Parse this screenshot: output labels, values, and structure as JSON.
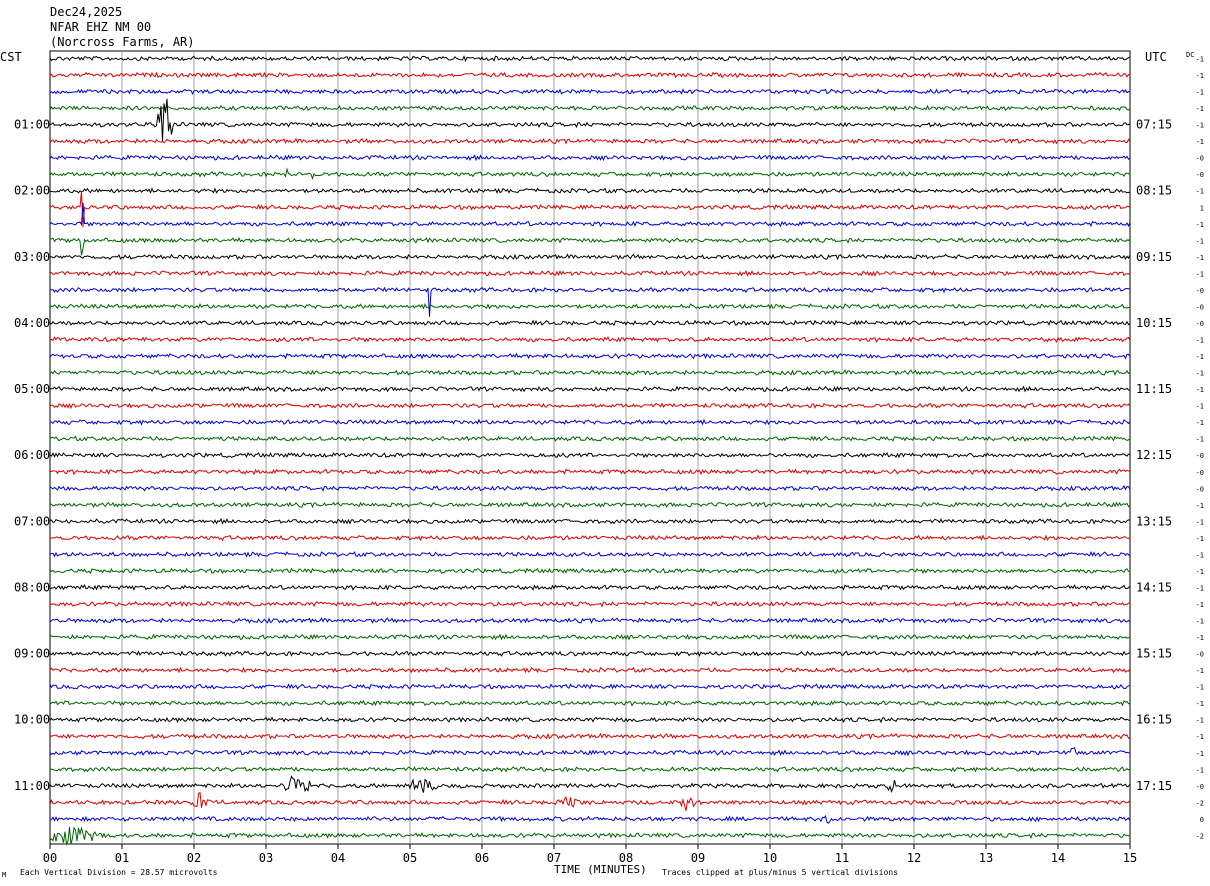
{
  "header": {
    "date": "Dec24,2025",
    "station": "NFAR EHZ NM 00",
    "location": "(Norcross Farms, AR)"
  },
  "left_axis_label": "CST",
  "right_axis_label": "UTC",
  "dc_label": "DC",
  "footer": {
    "note_left_prefix": "M",
    "note_left": "Each Vertical Division =   28.57 microvolts",
    "xlabel": "TIME (MINUTES)",
    "note_right": "Traces clipped at plus/minus 5 vertical divisions"
  },
  "colors": {
    "trace_cycle": [
      "#000000",
      "#dd0000",
      "#0000dd",
      "#006400"
    ],
    "grid": "#888888"
  },
  "chart_data": {
    "type": "line",
    "xlabel": "TIME (MINUTES)",
    "xlim": [
      0,
      15
    ],
    "x_ticks": [
      "00",
      "01",
      "02",
      "03",
      "04",
      "05",
      "06",
      "07",
      "08",
      "09",
      "10",
      "11",
      "12",
      "13",
      "14",
      "15"
    ],
    "rows": 48,
    "left_time_labels": [
      "01:00",
      "02:00",
      "03:00",
      "04:00",
      "05:00",
      "06:00",
      "07:00",
      "08:00",
      "09:00",
      "10:00",
      "11:00"
    ],
    "right_time_labels": [
      "07:15",
      "08:15",
      "09:15",
      "10:15",
      "11:15",
      "12:15",
      "13:15",
      "14:15",
      "15:15",
      "16:15",
      "17:15"
    ],
    "dc_offsets": [
      "-1",
      "-1",
      "-1",
      "-1",
      "-1",
      "-1",
      "-0",
      "-0",
      "-1",
      "1",
      "-1",
      "-1",
      "-1",
      "-1",
      "-0",
      "-0",
      "-0",
      "-1",
      "-1",
      "-1",
      "-1",
      "-1",
      "-1",
      "-1",
      "-0",
      "-0",
      "-0",
      "-1",
      "-1",
      "-1",
      "-1",
      "-1",
      "-1",
      "-1",
      "-1",
      "-1",
      "-0",
      "-1",
      "-1",
      "-1",
      "-1",
      "-1",
      "-1",
      "-1",
      "-0",
      "-2",
      "0",
      "-2"
    ],
    "events": [
      {
        "row": 4,
        "minute": 1.6,
        "amp": 3.5,
        "dur": 0.15
      },
      {
        "row": 7,
        "minute": 3.28,
        "amp": 3.0,
        "dur": 0.02
      },
      {
        "row": 7,
        "minute": 3.65,
        "amp": 2.0,
        "dur": 0.02
      },
      {
        "row": 9,
        "minute": 0.45,
        "amp": 5,
        "dur": 0.02
      },
      {
        "row": 10,
        "minute": 0.45,
        "amp": 5,
        "dur": 0.02
      },
      {
        "row": 11,
        "minute": 0.45,
        "amp": 5,
        "dur": 0.02
      },
      {
        "row": 14,
        "minute": 5.27,
        "amp": 4.5,
        "dur": 0.02
      },
      {
        "row": 44,
        "minute": 3.45,
        "amp": 1.5,
        "dur": 0.25
      },
      {
        "row": 44,
        "minute": 5.15,
        "amp": 1.2,
        "dur": 0.3
      },
      {
        "row": 44,
        "minute": 11.7,
        "amp": 1.0,
        "dur": 0.1
      },
      {
        "row": 45,
        "minute": 2.1,
        "amp": 1.0,
        "dur": 0.2
      },
      {
        "row": 45,
        "minute": 7.2,
        "amp": 0.8,
        "dur": 0.2
      },
      {
        "row": 45,
        "minute": 8.85,
        "amp": 1.0,
        "dur": 0.15
      },
      {
        "row": 46,
        "minute": 10.8,
        "amp": 0.8,
        "dur": 0.15
      },
      {
        "row": 47,
        "minute": 0.3,
        "amp": 1.2,
        "dur": 0.5
      },
      {
        "row": 42,
        "minute": 14.2,
        "amp": 1.0,
        "dur": 0.05
      }
    ]
  }
}
